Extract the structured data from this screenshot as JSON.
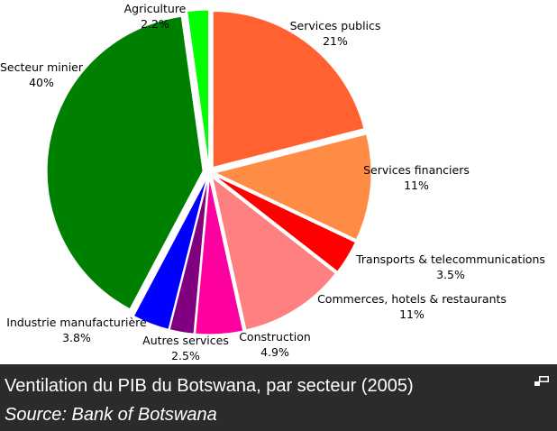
{
  "chart_data": {
    "type": "pie",
    "slices": [
      {
        "label": "Services publics",
        "value_label": "21%",
        "value": 21,
        "color": "#ff6130"
      },
      {
        "label": "Services financiers",
        "value_label": "11%",
        "value": 11,
        "color": "#ff8c44"
      },
      {
        "label": "Transports & telecommunications",
        "value_label": "3.5%",
        "value": 3.5,
        "color": "#ff0000"
      },
      {
        "label": "Commerces, hotels & restaurants",
        "value_label": "11%",
        "value": 11,
        "color": "#ff8080"
      },
      {
        "label": "Construction",
        "value_label": "4.9%",
        "value": 4.9,
        "color": "#ff00a0"
      },
      {
        "label": "Autres services",
        "value_label": "2.5%",
        "value": 2.5,
        "color": "#800080"
      },
      {
        "label": "Industrie manufacturière",
        "value_label": "3.8%",
        "value": 3.8,
        "color": "#0000ff"
      },
      {
        "label": "Secteur minier",
        "value_label": "40%",
        "value": 40,
        "color": "#008000"
      },
      {
        "label": "Agriculture",
        "value_label": "2.2%",
        "value": 2.2,
        "color": "#00ff00"
      }
    ]
  },
  "caption": {
    "title": "Ventilation du PIB du Botswana, par secteur (2005)",
    "source": "Source: Bank of Botswana"
  },
  "icons": {
    "enlarge": "enlarge-icon"
  }
}
